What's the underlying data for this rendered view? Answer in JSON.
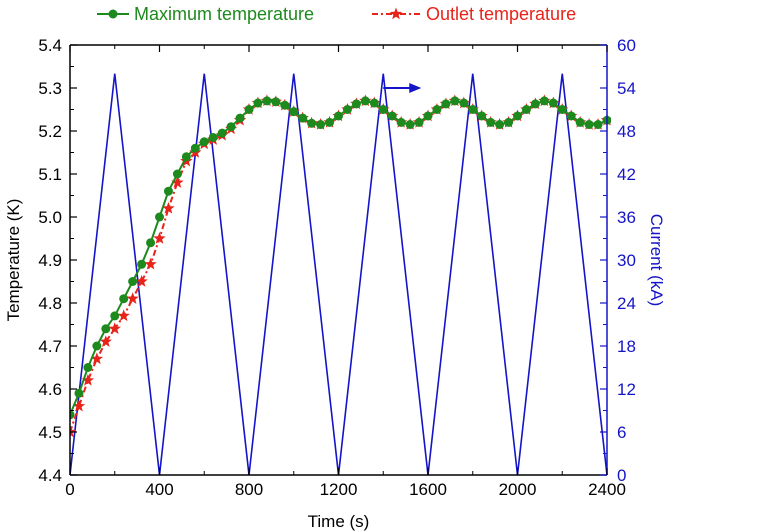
{
  "chart_data": {
    "type": "line",
    "title": "",
    "xlabel": "Time (s)",
    "ylabel": "Temperature (K)",
    "y2label": "Current (kA)",
    "xlim": [
      0,
      2400
    ],
    "ylim": [
      4.4,
      5.4
    ],
    "y2lim": [
      0,
      60
    ],
    "xticks": [
      0,
      400,
      800,
      1200,
      1600,
      2000,
      2400
    ],
    "yticks": [
      4.4,
      4.5,
      4.6,
      4.7,
      4.8,
      4.9,
      5.0,
      5.1,
      5.2,
      5.3,
      5.4
    ],
    "y2ticks": [
      0,
      6,
      12,
      18,
      24,
      30,
      36,
      42,
      48,
      54,
      60
    ],
    "grid": false,
    "legend": "top, outside plot",
    "colors": {
      "max": "#1e8a1e",
      "outlet": "#e8231a",
      "current": "#1414c8",
      "axis": "#000000"
    },
    "series": [
      {
        "name": "Maximum temperature",
        "axis": "left",
        "marker": "circle",
        "line": "solid",
        "x": [
          0,
          40,
          80,
          120,
          160,
          200,
          240,
          280,
          320,
          360,
          400,
          440,
          480,
          520,
          560,
          600,
          640,
          680,
          720,
          760,
          800,
          840,
          880,
          920,
          960,
          1000,
          1040,
          1080,
          1120,
          1160,
          1200,
          1240,
          1280,
          1320,
          1360,
          1400,
          1440,
          1480,
          1520,
          1560,
          1600,
          1640,
          1680,
          1720,
          1760,
          1800,
          1840,
          1880,
          1920,
          1960,
          2000,
          2040,
          2080,
          2120,
          2160,
          2200,
          2240,
          2280,
          2320,
          2360,
          2400
        ],
        "y": [
          4.54,
          4.59,
          4.65,
          4.7,
          4.74,
          4.77,
          4.81,
          4.85,
          4.89,
          4.94,
          5.0,
          5.06,
          5.1,
          5.14,
          5.16,
          5.175,
          5.185,
          5.195,
          5.21,
          5.23,
          5.25,
          5.265,
          5.27,
          5.268,
          5.26,
          5.245,
          5.23,
          5.218,
          5.215,
          5.22,
          5.235,
          5.25,
          5.263,
          5.27,
          5.265,
          5.25,
          5.235,
          5.22,
          5.215,
          5.22,
          5.235,
          5.25,
          5.263,
          5.27,
          5.265,
          5.25,
          5.235,
          5.22,
          5.215,
          5.22,
          5.235,
          5.25,
          5.263,
          5.27,
          5.265,
          5.25,
          5.235,
          5.22,
          5.215,
          5.215,
          5.225
        ]
      },
      {
        "name": "Outlet temperature",
        "axis": "left",
        "marker": "star",
        "line": "dash-dot",
        "x": [
          0,
          40,
          80,
          120,
          160,
          200,
          240,
          280,
          320,
          360,
          400,
          440,
          480,
          520,
          560,
          600,
          640,
          680,
          720,
          760,
          800,
          840,
          880,
          920,
          960,
          1000,
          1040,
          1080,
          1120,
          1160,
          1200,
          1240,
          1280,
          1320,
          1360,
          1400,
          1440,
          1480,
          1520,
          1560,
          1600,
          1640,
          1680,
          1720,
          1760,
          1800,
          1840,
          1880,
          1920,
          1960,
          2000,
          2040,
          2080,
          2120,
          2160,
          2200,
          2240,
          2280,
          2320,
          2360,
          2400
        ],
        "y": [
          4.5,
          4.56,
          4.62,
          4.67,
          4.71,
          4.74,
          4.77,
          4.81,
          4.85,
          4.89,
          4.95,
          5.02,
          5.08,
          5.13,
          5.15,
          5.17,
          5.18,
          5.19,
          5.205,
          5.225,
          5.25,
          5.265,
          5.27,
          5.268,
          5.26,
          5.245,
          5.23,
          5.218,
          5.215,
          5.22,
          5.235,
          5.25,
          5.263,
          5.27,
          5.265,
          5.25,
          5.235,
          5.22,
          5.215,
          5.22,
          5.235,
          5.25,
          5.263,
          5.27,
          5.265,
          5.25,
          5.235,
          5.22,
          5.215,
          5.22,
          5.235,
          5.25,
          5.263,
          5.27,
          5.265,
          5.25,
          5.235,
          5.22,
          5.215,
          5.215,
          5.225
        ]
      },
      {
        "name": "",
        "axis": "right",
        "marker": "none",
        "line": "solid",
        "x": [
          0,
          200,
          400,
          600,
          800,
          1000,
          1200,
          1400,
          1600,
          1800,
          2000,
          2200,
          2400
        ],
        "y": [
          0,
          56,
          0,
          56,
          0,
          56,
          0,
          56,
          0,
          56,
          0,
          56,
          0
        ]
      }
    ],
    "annotations": [
      {
        "type": "arrow",
        "text": "",
        "x": 1400,
        "y2": 54,
        "direction": "right",
        "points_to_axis": "right"
      }
    ]
  }
}
